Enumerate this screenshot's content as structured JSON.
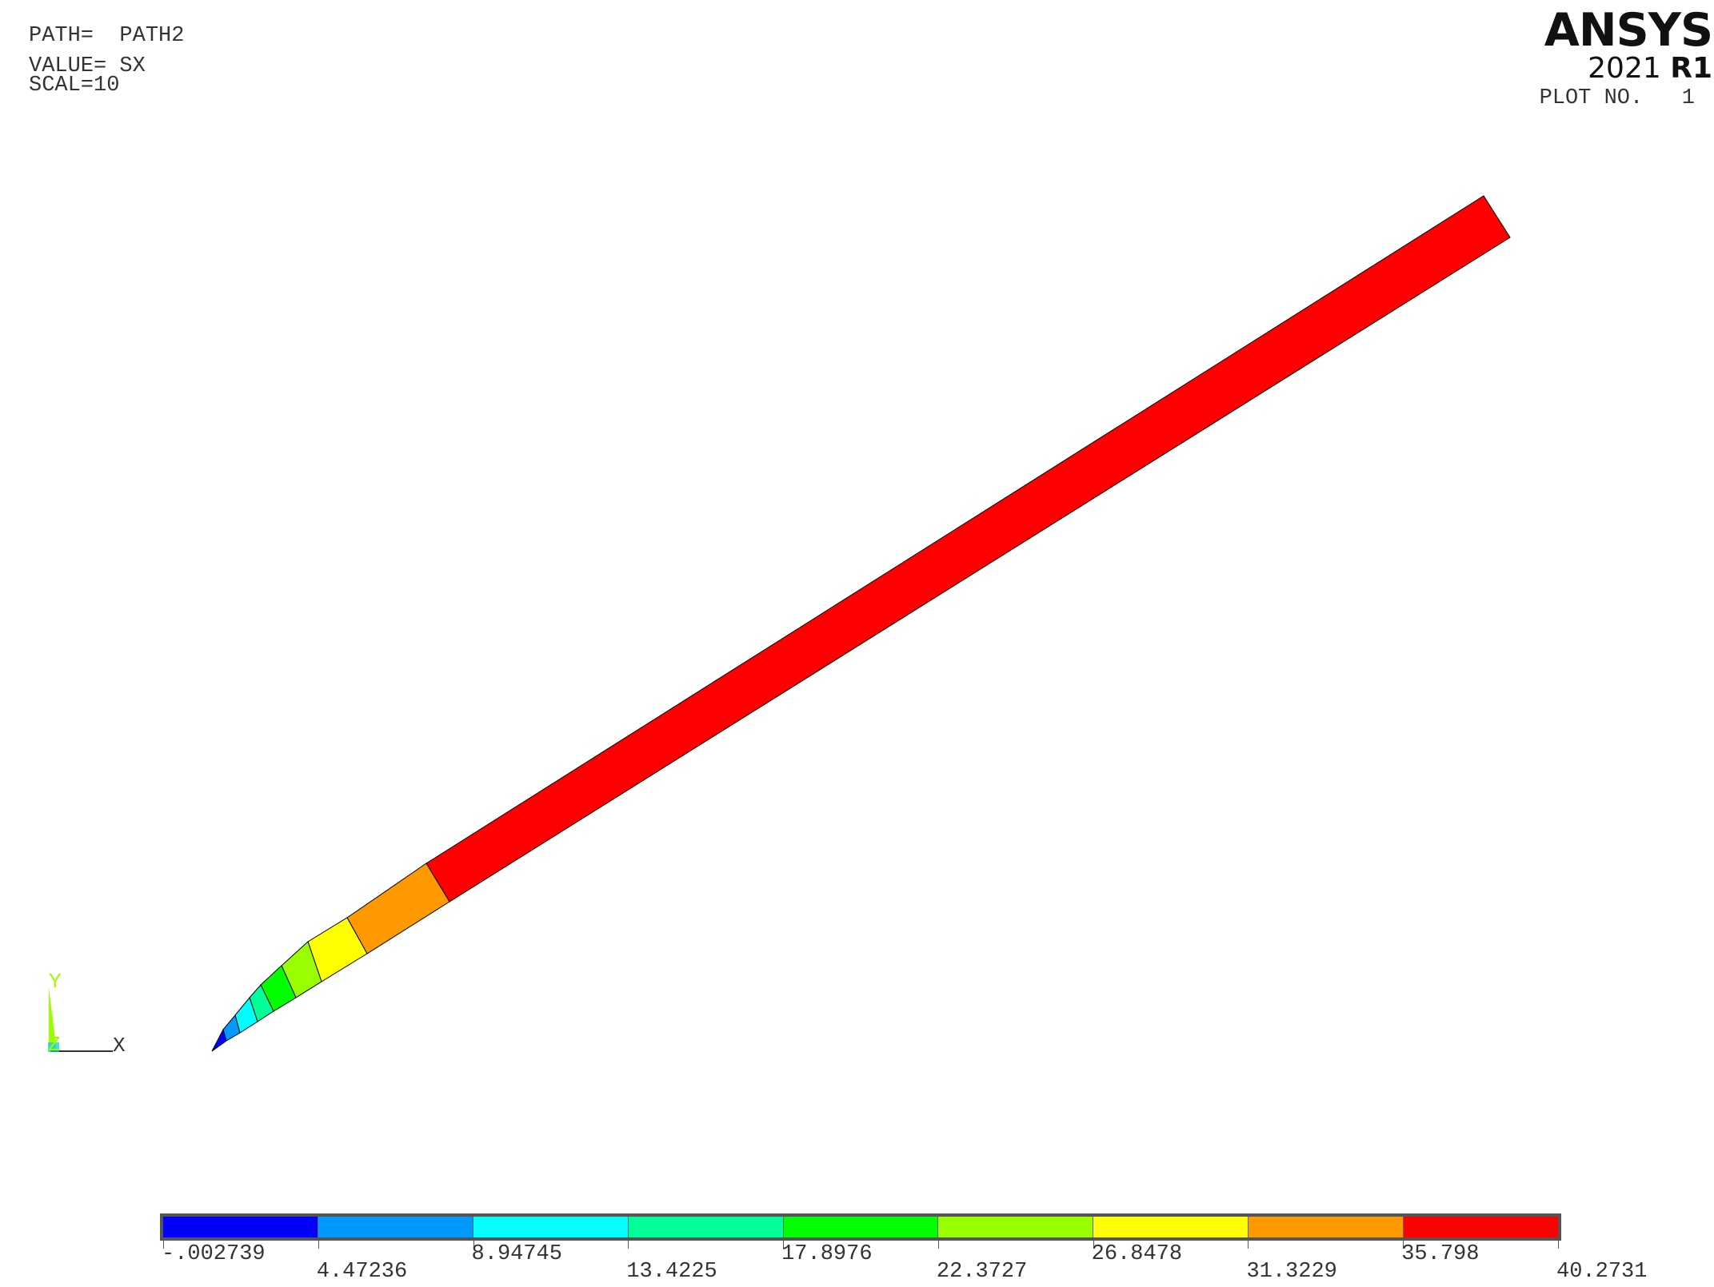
{
  "info": {
    "path_line": "PATH=  PATH2",
    "value_line": "VALUE= SX",
    "scale_line": "SCAL=10"
  },
  "brand": {
    "name": "ANSYS",
    "version_year": "2021",
    "version_release": "R1"
  },
  "plot_no": "PLOT NO.   1",
  "triad": {
    "y": "Y",
    "z": "Z",
    "x": "X"
  },
  "legend": {
    "colors": [
      "#0000ff",
      "#0099ff",
      "#00ffff",
      "#00ff99",
      "#00ff00",
      "#99ff00",
      "#ffff00",
      "#ff9900",
      "#ff0000"
    ],
    "values": [
      "-.002739",
      "4.47236",
      "8.94745",
      "13.4225",
      "17.8976",
      "22.3727",
      "26.8478",
      "31.3229",
      "35.798",
      "40.2731"
    ]
  }
}
